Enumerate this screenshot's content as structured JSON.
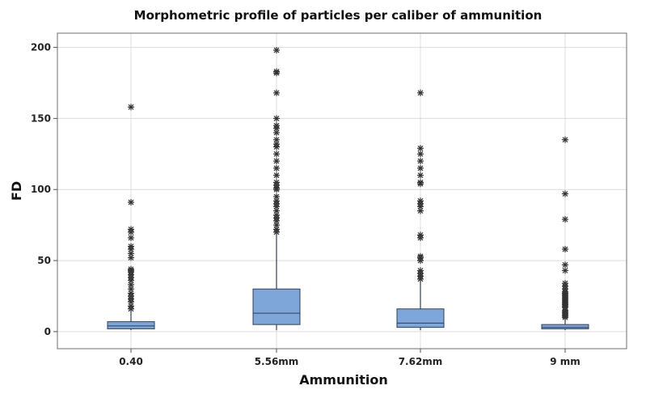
{
  "chart_data": {
    "type": "boxplot",
    "title": "Morphometric profile of particles per caliber of ammunition",
    "xlabel": "Ammunition",
    "ylabel": "FD",
    "ylim": [
      -12,
      210
    ],
    "yticks": [
      0,
      50,
      100,
      150,
      200
    ],
    "grid": true,
    "categories": [
      "0.40",
      "5.56mm",
      "7.62mm",
      "9 mm"
    ],
    "boxes": [
      {
        "category": "0.40",
        "q1": 2,
        "median": 4,
        "q3": 7,
        "whisker_low": 1,
        "whisker_high": 15,
        "outliers": [
          16,
          18,
          21,
          23,
          25,
          27,
          30,
          33,
          36,
          38,
          40,
          42,
          43,
          44,
          52,
          55,
          58,
          60,
          66,
          70,
          72,
          91,
          158
        ]
      },
      {
        "category": "5.56mm",
        "q1": 5,
        "median": 13,
        "q3": 30,
        "whisker_low": 1,
        "whisker_high": 68,
        "outliers": [
          70,
          72,
          75,
          78,
          80,
          82,
          85,
          88,
          90,
          92,
          95,
          100,
          101,
          103,
          105,
          110,
          115,
          120,
          125,
          130,
          132,
          135,
          140,
          143,
          145,
          150,
          168,
          182,
          183,
          198
        ]
      },
      {
        "category": "7.62mm",
        "q1": 3,
        "median": 6,
        "q3": 16,
        "whisker_low": 1,
        "whisker_high": 35,
        "outliers": [
          37,
          39,
          41,
          43,
          50,
          52,
          53,
          66,
          68,
          85,
          88,
          90,
          92,
          104,
          105,
          110,
          115,
          120,
          125,
          129,
          168
        ]
      },
      {
        "category": "9 mm",
        "q1": 2,
        "median": 3,
        "q3": 5,
        "whisker_low": 1,
        "whisker_high": 9,
        "outliers": [
          10,
          11,
          12,
          13,
          14,
          15,
          17,
          18,
          19,
          20,
          21,
          22,
          23,
          24,
          25,
          26,
          27,
          28,
          30,
          32,
          34,
          43,
          47,
          58,
          79,
          97,
          135
        ]
      }
    ]
  }
}
